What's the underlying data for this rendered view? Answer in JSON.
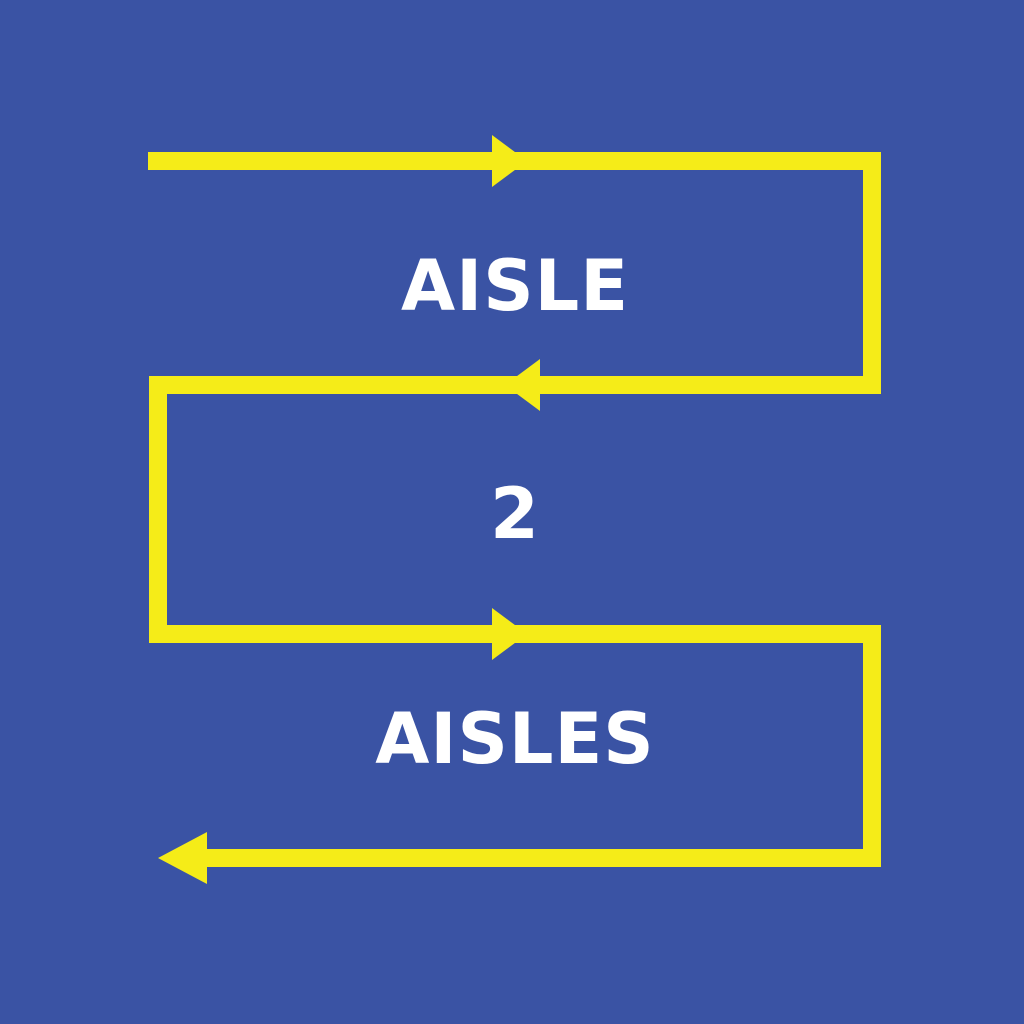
{
  "logo": {
    "line1": "AISLE",
    "line2": "2",
    "line3": "AISLES"
  },
  "colors": {
    "background": "#3A53A4",
    "path": "#F5EC18",
    "text": "#FFFFFF"
  },
  "icons": {
    "arrowheads": "triangle-arrow-icon"
  }
}
